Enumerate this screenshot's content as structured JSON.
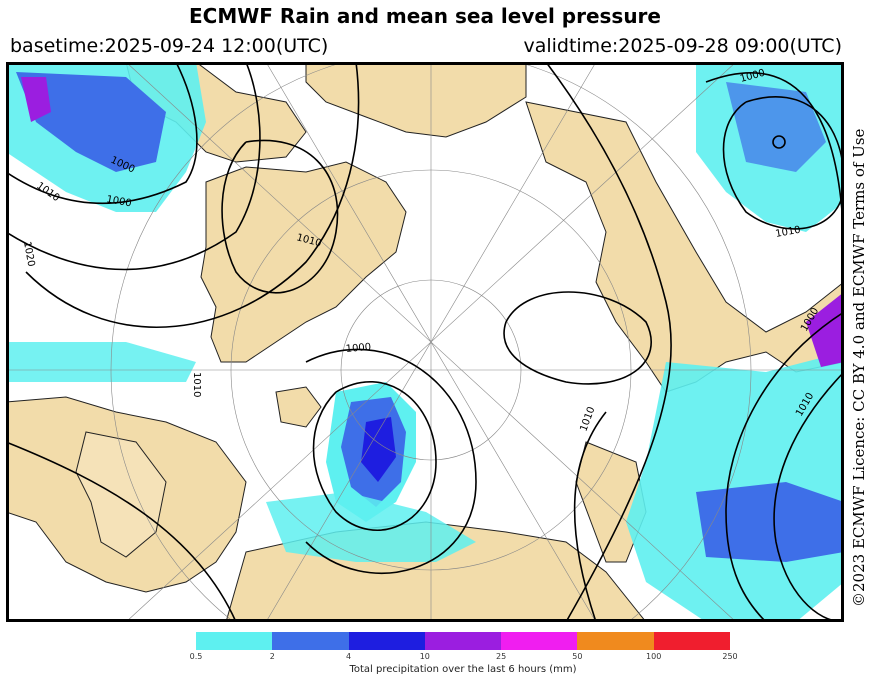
{
  "title": "ECMWF Rain and mean sea level pressure",
  "basetime": "basetime:2025-09-24 12:00(UTC)",
  "validtime": "validtime:2025-09-28 09:00(UTC)",
  "licence": "©2023 ECMWF Licence: CC BY 4.0 and ECMWF Terms of Use",
  "isobar_labels": [
    "1000",
    "1010",
    "1000",
    "1010",
    "1020",
    "1010",
    "1000",
    "1010",
    "1000",
    "1010",
    "1000",
    "1010"
  ],
  "legend": {
    "title": "Total precipitation over the last 6 hours (mm)",
    "ticks": [
      "0.5",
      "2",
      "4",
      "10",
      "25",
      "50",
      "100",
      "250"
    ],
    "colors": [
      "#5ef0f0",
      "#3e6fe8",
      "#1e1ee0",
      "#9b1ee0",
      "#f01ef0",
      "#f08a1e",
      "#f01e2e"
    ]
  },
  "colors": {
    "land": "#f2dcaa",
    "ocean": "#ffffff",
    "isobar": "#000000"
  }
}
